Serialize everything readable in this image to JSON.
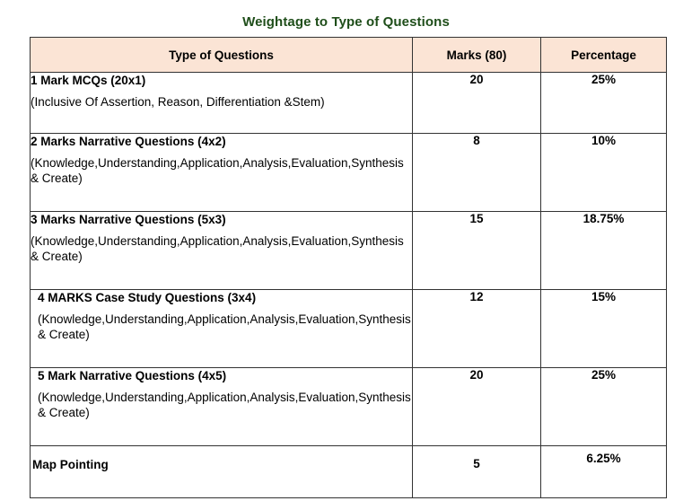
{
  "title": "Weightage to Type of Questions",
  "table": {
    "headers": [
      "Type of Questions",
      "Marks (80)",
      "Percentage"
    ],
    "rows": [
      {
        "title": "1 Mark MCQs (20x1)",
        "description": "(Inclusive Of Assertion, Reason, Differentiation &Stem)",
        "marks": "20",
        "percentage": "25%"
      },
      {
        "title": "2 Marks Narrative Questions (4x2)",
        "description": "(Knowledge,Understanding,Application,Analysis,Evaluation,Synthesis & Create)",
        "marks": "8",
        "percentage": "10%"
      },
      {
        "title": "3 Marks Narrative Questions (5x3)",
        "description": "(Knowledge,Understanding,Application,Analysis,Evaluation,Synthesis & Create)",
        "marks": "15",
        "percentage": "18.75%"
      },
      {
        "title": "4 MARKS Case Study Questions (3x4)",
        "description": "(Knowledge,Understanding,Application,Analysis,Evaluation,Synthesis & Create)",
        "marks": "12",
        "percentage": "15%"
      },
      {
        "title": "5 Mark Narrative Questions (4x5)",
        "description": "(Knowledge,Understanding,Application,Analysis,Evaluation,Synthesis & Create)",
        "marks": "20",
        "percentage": "25%"
      },
      {
        "title": "Map Pointing",
        "description": "",
        "marks": "5",
        "percentage": "6.25%"
      }
    ]
  },
  "colors": {
    "title": "#1f4e1a",
    "header_background": "#fbe4d5",
    "border": "#333333"
  }
}
